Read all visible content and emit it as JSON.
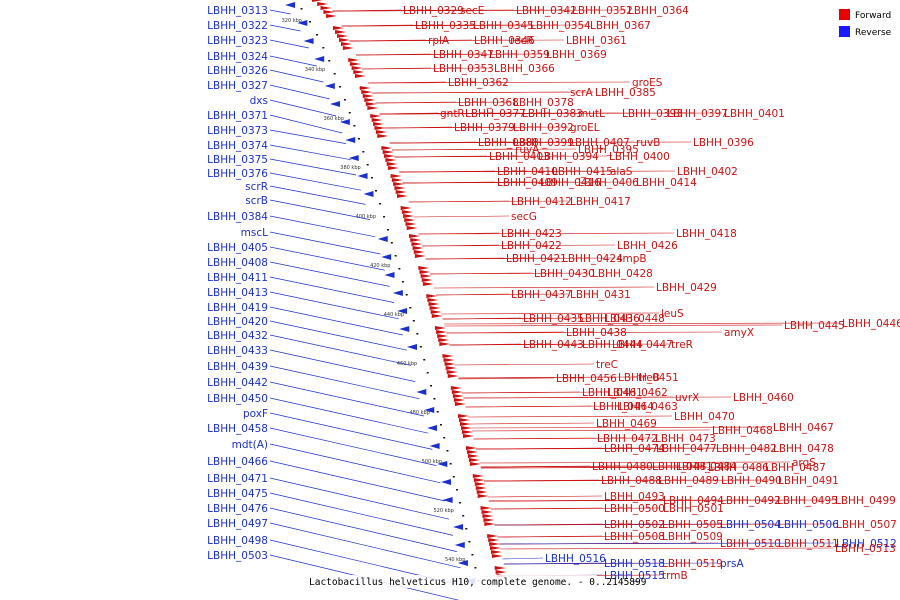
{
  "caption": "Lactobacillus helveticus H10, complete genome. - 0..2145899",
  "legend": [
    {
      "label": "Forward",
      "color": "#e60000"
    },
    {
      "label": "Reverse",
      "color": "#1a1aff"
    }
  ],
  "ticks": [
    "320 kbp",
    "340 kbp",
    "360 kbp",
    "380 kbp",
    "400 kbp",
    "420 kbp",
    "440 kbp",
    "460 kbp",
    "480 kbp",
    "500 kbp",
    "520 kbp",
    "540 kbp"
  ],
  "reverse_labels": [
    "LBHH_0313",
    "LBHH_0322",
    "LBHH_0323",
    "LBHH_0324",
    "LBHH_0326",
    "LBHH_0327",
    "dxs",
    "LBHH_0371",
    "LBHH_0373",
    "LBHH_0374",
    "LBHH_0375",
    "LBHH_0376",
    "scrR",
    "scrB",
    "LBHH_0384",
    "mscL",
    "LBHH_0405",
    "LBHH_0408",
    "LBHH_0411",
    "LBHH_0413",
    "LBHH_0419",
    "LBHH_0420",
    "LBHH_0432",
    "LBHH_0433",
    "LBHH_0439",
    "LBHH_0442",
    "LBHH_0450",
    "poxF",
    "LBHH_0458",
    "mdt(A)",
    "LBHH_0466",
    "LBHH_0471",
    "LBHH_0475",
    "LBHH_0476",
    "LBHH_0497",
    "LBHH_0498",
    "LBHH_0503"
  ],
  "forward_labels": [
    "LBHH_0329",
    "secE",
    "LBHH_0342",
    "LBHH_0352",
    "LBHH_0364",
    "LBHH_0335",
    "LBHH_0345",
    "LBHH_0354",
    "LBHH_0367",
    "rplA",
    "LBHH_0346",
    "recR",
    "LBHH_0361",
    "LBHH_0347",
    "LBHH_0359",
    "LBHH_0369",
    "LBHH_0353",
    "LBHH_0366",
    "LBHH_0362",
    "groES",
    "scrA",
    "LBHH_0385",
    "LBHH_0368",
    "LBHH_0378",
    "gntR",
    "LBHH_0377",
    "LBHH_0383",
    "mutL",
    "LBHH_0393",
    "LBHH_0397",
    "LBHH_0401",
    "LBHH_0379",
    "LBHH_0392",
    "groEL",
    "LBHH_0388",
    "LBHH_0399",
    "LBHH_0407",
    "ruvB",
    "LBHH_0396",
    "ruvA",
    "LBHH_0395",
    "LBHH_0403",
    "LBHH_0394",
    "LBHH_0400",
    "LBHH_0410",
    "LBHH_0415",
    "alaS",
    "LBHH_0402",
    "LBHH_0409",
    "LBHH_0416",
    "LBHH_0406",
    "LBHH_0414",
    "LBHH_0412",
    "LBHH_0417",
    "secG",
    "LBHH_0423",
    "LBHH_0418",
    "LBHH_0422",
    "LBHH_0426",
    "LBHH_0421",
    "LBHH_0424",
    "smpB",
    "LBHH_0430",
    "LBHH_0428",
    "LBHH_0429",
    "LBHH_0437",
    "LBHH_0431",
    "leuS",
    "LBHH_0435",
    "LBHH_0436",
    "LBHH_0448",
    "LBHH_0446",
    "LBHH_0445",
    "LBHH_0438",
    "amyX",
    "LBHH_0443",
    "LBHH_0444",
    "LBHH_0447",
    "treR",
    "treC",
    "LBHH_0451",
    "treB",
    "LBHH_0456",
    "LBHH_0461",
    "LBHH_0462",
    "uvrX",
    "LBHH_0460",
    "LBHH_0464",
    "LBHH_0463",
    "LBHH_0470",
    "LBHH_0469",
    "LBHH_0467",
    "LBHH_0468",
    "LBHH_0472",
    "LBHH_0473",
    "LBHH_0474",
    "LBHH_0477",
    "LBHH_0482",
    "LBHH_0478",
    "argS",
    "LBHH_0480",
    "LBHH_0481",
    "LBHH_0484",
    "LBHH_0486",
    "LBHH_0487",
    "LBHH_0488",
    "LBHH_0489",
    "LBHH_0490",
    "LBHH_0491",
    "LBHH_0493",
    "LBHH_0494",
    "LBHH_0492",
    "LBHH_0495",
    "LBHH_0499",
    "LBHH_0500",
    "LBHH_0501",
    "LBHH_0502",
    "LBHH_0505",
    "LBHH_0504",
    "LBHH_0506",
    "LBHH_0507",
    "LBHH_0508",
    "LBHH_0509",
    "LBHH_0510",
    "LBHH_0511",
    "LBHH_0512",
    "LBHH_0513",
    "LBHH_0516",
    "LBHH_0518",
    "LBHH_0519",
    "prsA",
    "LBHH_0515",
    "trmB"
  ],
  "forward_in_reverse_color": [
    "LBHH_0512",
    "LBHH_0516",
    "LBHH_0518",
    "prsA",
    "LBHH_0515",
    "LBHH_0506",
    "LBHH_0504"
  ]
}
